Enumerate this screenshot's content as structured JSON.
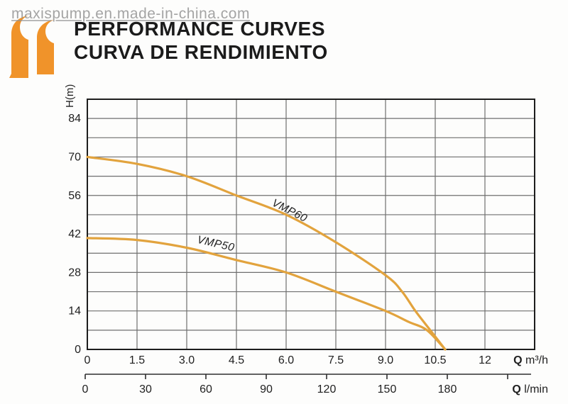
{
  "watermark": "maxispump.en.made-in-china.com",
  "header": {
    "title_en": "PERFORMANCE CURVES",
    "title_es": "CURVA DE RENDIMIENTO"
  },
  "colors": {
    "curve": "#e2a33d",
    "logo": "#f0932a",
    "grid": "#6f6f6f",
    "border": "#1d1d1d",
    "text": "#1f1f1f",
    "ruler": "#2e2e2e"
  },
  "chart_data": {
    "type": "line",
    "title": "",
    "grid": true,
    "legend_position": "inline-on-curves",
    "y_axis": {
      "label": "H(m)",
      "tick_labels": [
        "0",
        "14",
        "28",
        "42",
        "56",
        "70",
        "84"
      ],
      "tick_values": [
        0,
        14,
        28,
        42,
        56,
        70,
        84
      ],
      "range": [
        0,
        91
      ],
      "gridline_step": 7
    },
    "x_axis_primary": {
      "label_q": "Q",
      "label_unit": "m³/h",
      "tick_labels": [
        "0",
        "1.5",
        "3.0",
        "4.5",
        "6.0",
        "7.5",
        "9.0",
        "10.5",
        "12"
      ],
      "tick_values": [
        0,
        1.5,
        3.0,
        4.5,
        6.0,
        7.5,
        9.0,
        10.5,
        12
      ],
      "range": [
        0,
        13.5
      ],
      "gridline_step": 1.5
    },
    "x_axis_secondary": {
      "label_q": "Q",
      "label_unit": "l/min",
      "tick_labels": [
        "0",
        "30",
        "60",
        "90",
        "120",
        "150",
        "180"
      ],
      "tick_values": [
        0,
        30,
        60,
        90,
        120,
        150,
        180
      ],
      "unlabeled_tick_values": [
        210
      ],
      "range": [
        0,
        221
      ],
      "lmin_per_m3h": 16.667
    },
    "series": [
      {
        "name": "VMP60",
        "points": [
          [
            0,
            70
          ],
          [
            1.5,
            67.5
          ],
          [
            3,
            63
          ],
          [
            4.5,
            56
          ],
          [
            6,
            49
          ],
          [
            7.5,
            39
          ],
          [
            9,
            27
          ],
          [
            9.5,
            21
          ],
          [
            9.9,
            14
          ],
          [
            10.35,
            7
          ],
          [
            10.8,
            0
          ]
        ],
        "label_pos": {
          "q": 5.55,
          "h": 52.5
        },
        "label_rotation": 27
      },
      {
        "name": "VMP50",
        "points": [
          [
            0,
            40.5
          ],
          [
            1.5,
            39.8
          ],
          [
            3,
            37
          ],
          [
            4.5,
            32.5
          ],
          [
            6,
            28
          ],
          [
            7.5,
            21
          ],
          [
            9,
            14
          ],
          [
            9.7,
            10
          ],
          [
            10.25,
            7
          ],
          [
            10.8,
            0
          ]
        ],
        "label_pos": {
          "q": 3.3,
          "h": 38.8
        },
        "label_rotation": 13
      }
    ]
  }
}
